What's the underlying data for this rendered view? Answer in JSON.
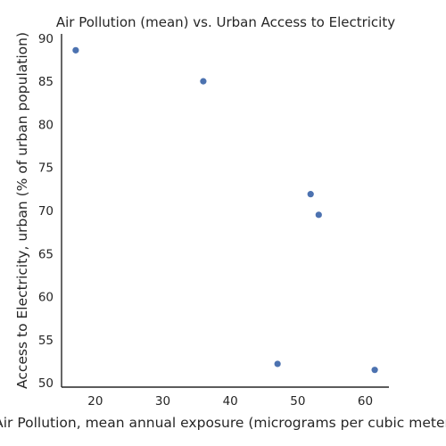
{
  "chart_data": {
    "type": "scatter",
    "title": "Air Pollution (mean) vs. Urban Access to Electricity",
    "xlabel": "Air Pollution, mean annual exposure (micrograms per cubic meter)",
    "ylabel": "Access to Electricity, urban (% of urban population)",
    "xlim": [
      15,
      63.5
    ],
    "ylim": [
      49.5,
      90.5
    ],
    "xticks": [
      20,
      30,
      40,
      50,
      60
    ],
    "yticks": [
      50,
      55,
      60,
      65,
      70,
      75,
      80,
      85,
      90
    ],
    "grid": false,
    "point_color": "#4c72b0",
    "points": [
      {
        "x": 17.1,
        "y": 88.6
      },
      {
        "x": 36.0,
        "y": 85.0
      },
      {
        "x": 51.9,
        "y": 71.9
      },
      {
        "x": 53.1,
        "y": 69.5
      },
      {
        "x": 47.0,
        "y": 52.2
      },
      {
        "x": 61.4,
        "y": 51.5
      }
    ]
  }
}
